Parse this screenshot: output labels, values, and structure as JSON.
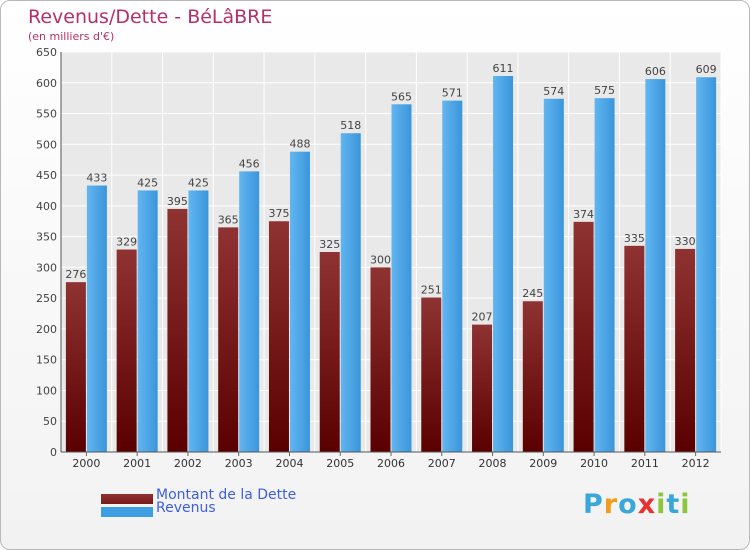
{
  "chart_data": {
    "type": "bar",
    "title": "Revenus/Dette - BéLâBRE",
    "subtitle": "(en milliers d'€)",
    "categories": [
      "2000",
      "2001",
      "2002",
      "2003",
      "2004",
      "2005",
      "2006",
      "2007",
      "2008",
      "2009",
      "2010",
      "2011",
      "2012"
    ],
    "series": [
      {
        "name": "Montant de la Dette",
        "color": "#7a1a1a",
        "values": [
          276,
          329,
          395,
          365,
          375,
          325,
          300,
          251,
          207,
          245,
          374,
          335,
          330
        ]
      },
      {
        "name": "Revenus",
        "color": "#3e9ee4",
        "values": [
          433,
          425,
          425,
          456,
          488,
          518,
          565,
          571,
          611,
          574,
          575,
          606,
          609
        ]
      }
    ],
    "ylim": [
      0,
      650
    ],
    "yticks": [
      0,
      50,
      100,
      150,
      200,
      250,
      300,
      350,
      400,
      450,
      500,
      550,
      600,
      650
    ],
    "grid": true,
    "legend_position": "bottom-left"
  },
  "brand": {
    "letters": [
      "P",
      "r",
      "o",
      "x",
      "i",
      "t",
      "i"
    ],
    "colors": [
      "#3aa7d9",
      "#f29a1a",
      "#3aa7d9",
      "#e8312f",
      "#8cc63f",
      "#3aa7d9",
      "#8cc63f"
    ]
  }
}
